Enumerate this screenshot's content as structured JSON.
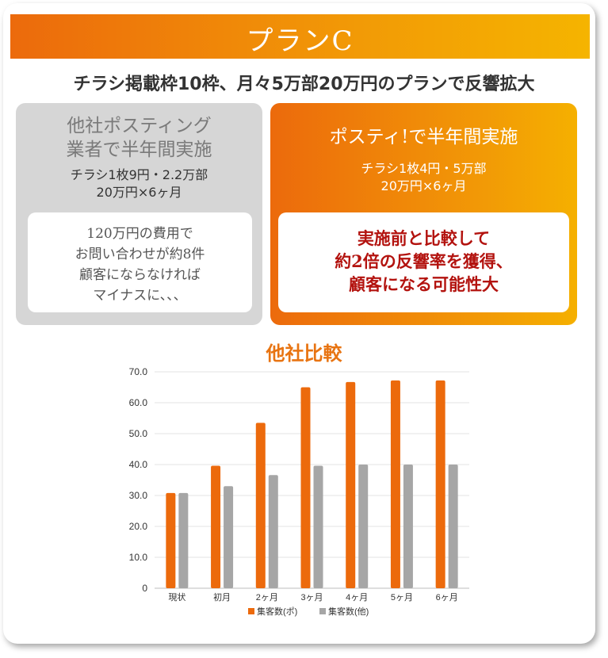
{
  "banner": {
    "title": "プランC"
  },
  "subtitle": "チラシ掲載枠10枠、月々5万部20万円のプランで反響拡大",
  "left_box": {
    "heading_line1": "他社ポスティング",
    "heading_line2": "業者で半年間実施",
    "detail_line1": "チラシ1枚9円・2.2万部",
    "detail_line2": "20万円×6ヶ月",
    "note_lines": [
      "120万円の費用で",
      "お問い合わせが約8件",
      "顧客にならなければ",
      "マイナスに、、、"
    ]
  },
  "right_box": {
    "heading": "ポスティ!で半年間実施",
    "detail_line1": "チラシ1枚4円・5万部",
    "detail_line2": "20万円×6ヶ月",
    "note_lines": [
      "実施前と比較して",
      "約2倍の反響率を獲得、",
      "顧客になる可能性大"
    ]
  },
  "colors": {
    "accent": "#ec6a0c",
    "gray": "#a6a6a6",
    "red_text": "#b3130f"
  },
  "chart_data": {
    "type": "bar",
    "title": "他社比較",
    "categories": [
      "現状",
      "初月",
      "2ヶ月",
      "3ヶ月",
      "4ヶ月",
      "5ヶ月",
      "6ヶ月"
    ],
    "series": [
      {
        "name": "集客数(ポ)",
        "color": "#ec6a0c",
        "values": [
          30.8,
          39.6,
          53.5,
          65.0,
          66.7,
          67.2,
          67.2
        ]
      },
      {
        "name": "集客数(他)",
        "color": "#a6a6a6",
        "values": [
          30.8,
          33.0,
          36.6,
          39.6,
          40.0,
          40.0,
          40.0
        ]
      }
    ],
    "ylim": [
      0,
      70
    ],
    "yticks": [
      "0",
      "10.0",
      "20.0",
      "30.0",
      "40.0",
      "50.0",
      "60.0",
      "70.0"
    ],
    "grid": true,
    "legend": "bottom"
  }
}
